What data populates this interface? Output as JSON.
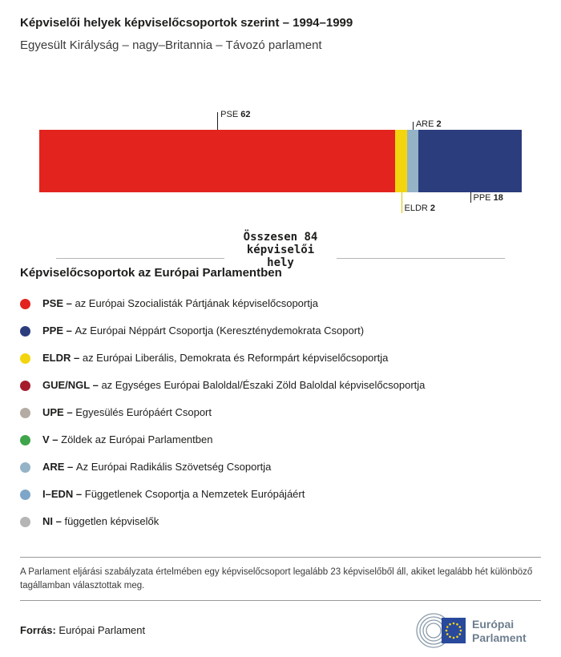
{
  "header": {
    "title": "Képviselői helyek képviselőcsoportok szerint – 1994–1999",
    "subtitle": "Egyesült Királyság – nagy–Britannia – Távozó parlament"
  },
  "chart_data": {
    "type": "bar",
    "variant": "stacked-horizontal",
    "title": "Képviselői helyek képviselőcsoportok szerint – 1994–1999",
    "total_seats": 84,
    "total_label": "Összesen 84 képviselői hely",
    "total_lines": [
      "Összesen 84",
      "képviselői",
      "hely"
    ],
    "segments": [
      {
        "id": "pse",
        "group": "PSE",
        "seats": 62,
        "color": "#e2231e",
        "line_color": "#1d1d1b",
        "label_position": "above",
        "line_length": 22
      },
      {
        "id": "eldr",
        "group": "ELDR",
        "seats": 2,
        "color": "#f2d50f",
        "line_color": "#d9c500",
        "label_position": "below",
        "line_length": 26
      },
      {
        "id": "are",
        "group": "ARE",
        "seats": 2,
        "color": "#94b3c7",
        "line_color": "#1d1d1b",
        "label_position": "above",
        "line_length": 10
      },
      {
        "id": "ppe",
        "group": "PPE",
        "seats": 18,
        "color": "#2c3d7d",
        "line_color": "#1d1d1b",
        "label_position": "below",
        "line_length": 13
      }
    ]
  },
  "legend": {
    "heading": "Képviselőcsoportok az Európai Parlamentben",
    "items": [
      {
        "id": "pse",
        "abbr": "PSE –",
        "name": "az Európai Szocialisták Pártjának képviselőcsoportja",
        "color": "#e2231e"
      },
      {
        "id": "ppe",
        "abbr": "PPE –",
        "name": "Az Európai Néppárt Csoportja (Kereszténydemokrata Csoport)",
        "color": "#2c3d7d"
      },
      {
        "id": "eldr",
        "abbr": "ELDR –",
        "name": "az Európai Liberális, Demokrata és Reformpárt képviselőcsoportja",
        "color": "#f2d50f"
      },
      {
        "id": "gue-ngl",
        "abbr": "GUE/NGL –",
        "name": "az Egységes Európai Baloldal/Északi Zöld Baloldal képviselőcsoportja",
        "color": "#a51d2d"
      },
      {
        "id": "upe",
        "abbr": "UPE –",
        "name": "Egyesülés Európáért Csoport",
        "color": "#b4aba3"
      },
      {
        "id": "v",
        "abbr": "V –",
        "name": "Zöldek az Európai Parlamentben",
        "color": "#3fa54b"
      },
      {
        "id": "are",
        "abbr": "ARE –",
        "name": "Az Európai Radikális Szövetség Csoportja",
        "color": "#94b3c7"
      },
      {
        "id": "i-edn",
        "abbr": "I–EDN –",
        "name": "Függetlenek Csoportja a Nemzetek Európájáért",
        "color": "#7ea6c8"
      },
      {
        "id": "ni",
        "abbr": "NI –",
        "name": "független képviselők",
        "color": "#b5b5b5"
      }
    ]
  },
  "footnote": "A Parlament eljárási szabályzata értelmében egy képviselőcsoport legalább 23 képviselőből áll, akiket legalább hét különböző tagállamban választottak meg.",
  "footer": {
    "source_label": "Forrás:",
    "source_value": "Európai Parlament",
    "logo_line1": "Európai",
    "logo_line2": "Parlament"
  }
}
